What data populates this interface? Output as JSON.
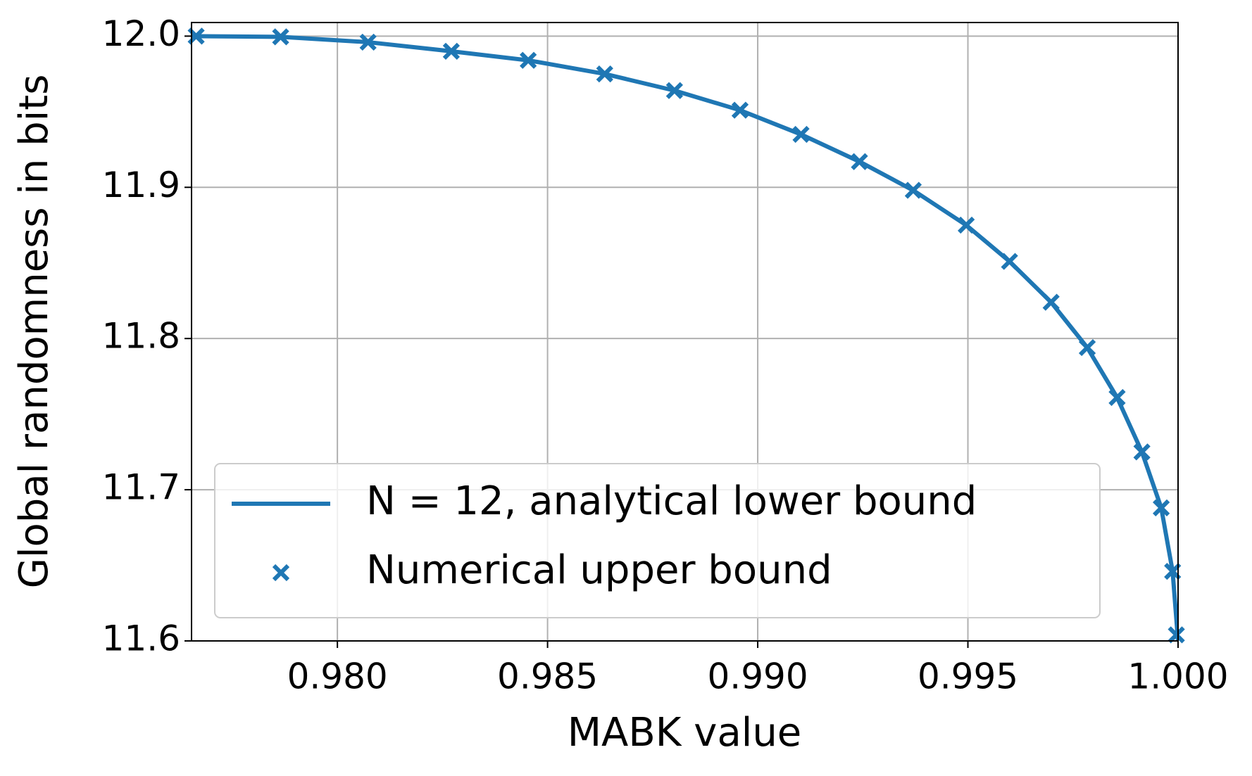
{
  "chart_data": {
    "type": "line",
    "xlabel": "MABK value",
    "ylabel": "Global randomness in bits",
    "xlim": [
      0.97653,
      1.0
    ],
    "ylim": [
      11.6,
      12.009
    ],
    "xticks": [
      {
        "value": 0.98,
        "label": "0.980"
      },
      {
        "value": 0.985,
        "label": "0.985"
      },
      {
        "value": 0.99,
        "label": "0.990"
      },
      {
        "value": 0.995,
        "label": "0.995"
      },
      {
        "value": 1.0,
        "label": "1.000"
      }
    ],
    "yticks": [
      11.6,
      11.7,
      11.8,
      11.9,
      {
        "value": 12.0,
        "label": "12.0"
      }
    ],
    "grid": true,
    "legend": "lower left",
    "series": [
      {
        "name": "N = 12, analytical lower bound",
        "kind": "line",
        "color": "#1f77b4",
        "x": [
          0.97653,
          0.97865,
          0.98073,
          0.98271,
          0.98454,
          0.98636,
          0.98802,
          0.98958,
          0.99103,
          0.99242,
          0.9937,
          0.99496,
          0.99599,
          0.99698,
          0.99784,
          0.99855,
          0.99914,
          0.9996,
          0.99987,
          1.0
        ],
        "values": [
          12.0,
          11.9995,
          11.996,
          11.99,
          11.984,
          11.975,
          11.964,
          11.951,
          11.935,
          11.917,
          11.898,
          11.875,
          11.851,
          11.824,
          11.794,
          11.761,
          11.725,
          11.688,
          11.646,
          11.6
        ]
      },
      {
        "name": "Numerical upper bound",
        "kind": "scatter",
        "color": "#1f77b4",
        "x": [
          0.97664,
          0.97865,
          0.98073,
          0.98271,
          0.98454,
          0.98636,
          0.98802,
          0.98958,
          0.99103,
          0.99242,
          0.9937,
          0.99496,
          0.99599,
          0.99698,
          0.99784,
          0.99855,
          0.99914,
          0.9996,
          0.99987,
          0.99996
        ],
        "values": [
          12.0,
          11.9995,
          11.996,
          11.99,
          11.984,
          11.975,
          11.964,
          11.951,
          11.935,
          11.917,
          11.898,
          11.875,
          11.851,
          11.824,
          11.794,
          11.761,
          11.725,
          11.688,
          11.646,
          11.604
        ]
      }
    ]
  }
}
